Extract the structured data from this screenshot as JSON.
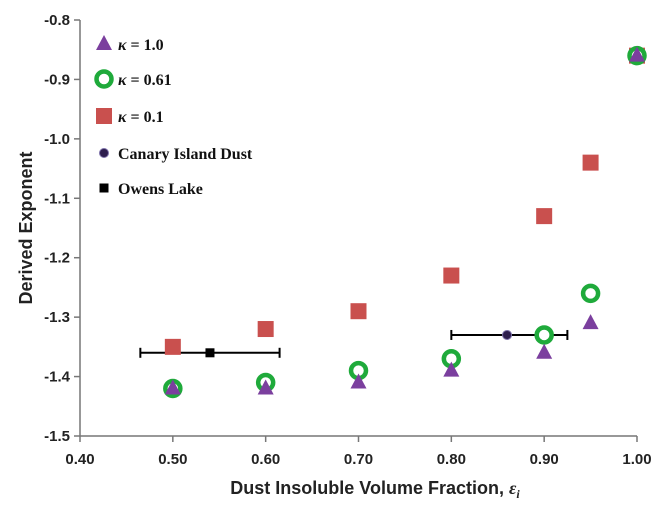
{
  "chart_data": {
    "type": "scatter",
    "xlabel": "Dust Insoluble Volume Fraction, ",
    "xlabel_symbol": "ε",
    "xlabel_sub": "i",
    "ylabel": "Derived Exponent",
    "xlim": [
      0.4,
      1.0
    ],
    "ylim": [
      -1.5,
      -0.8
    ],
    "x_ticks": [
      "0.40",
      "0.50",
      "0.60",
      "0.70",
      "0.80",
      "0.90",
      "1.00"
    ],
    "y_ticks": [
      "-0.8",
      "-0.9",
      "-1.0",
      "-1.1",
      "-1.2",
      "-1.3",
      "-1.4",
      "-1.5"
    ],
    "grid": false,
    "legend_position": "top-left",
    "series": [
      {
        "name_symbol": "κ",
        "name_value": " = 1.0",
        "marker": "triangle",
        "color": "#7B3F9E",
        "x": [
          0.5,
          0.6,
          0.7,
          0.8,
          0.9,
          0.95,
          1.0
        ],
        "y": [
          -1.42,
          -1.42,
          -1.41,
          -1.39,
          -1.36,
          -1.31,
          -0.86
        ]
      },
      {
        "name_symbol": "κ",
        "name_value": " = 0.61",
        "marker": "ring",
        "color": "#1FAA3B",
        "x": [
          0.5,
          0.6,
          0.7,
          0.8,
          0.9,
          0.95,
          1.0
        ],
        "y": [
          -1.42,
          -1.41,
          -1.39,
          -1.37,
          -1.33,
          -1.26,
          -0.86
        ]
      },
      {
        "name_symbol": "κ",
        "name_value": " = 0.1",
        "marker": "square",
        "color": "#C9504E",
        "x": [
          0.5,
          0.6,
          0.7,
          0.8,
          0.9,
          0.95,
          1.0
        ],
        "y": [
          -1.35,
          -1.32,
          -1.29,
          -1.23,
          -1.13,
          -1.04,
          -0.86
        ]
      },
      {
        "name": "Canary Island Dust",
        "marker": "dot",
        "color": "#2E1E4E",
        "x": [
          0.86
        ],
        "y": [
          -1.33
        ],
        "x_error": [
          [
            0.8,
            0.925
          ]
        ]
      },
      {
        "name": "Owens Lake",
        "marker": "small-square",
        "color": "#000000",
        "x": [
          0.54
        ],
        "y": [
          -1.36
        ],
        "x_error": [
          [
            0.465,
            0.615
          ]
        ]
      }
    ]
  }
}
